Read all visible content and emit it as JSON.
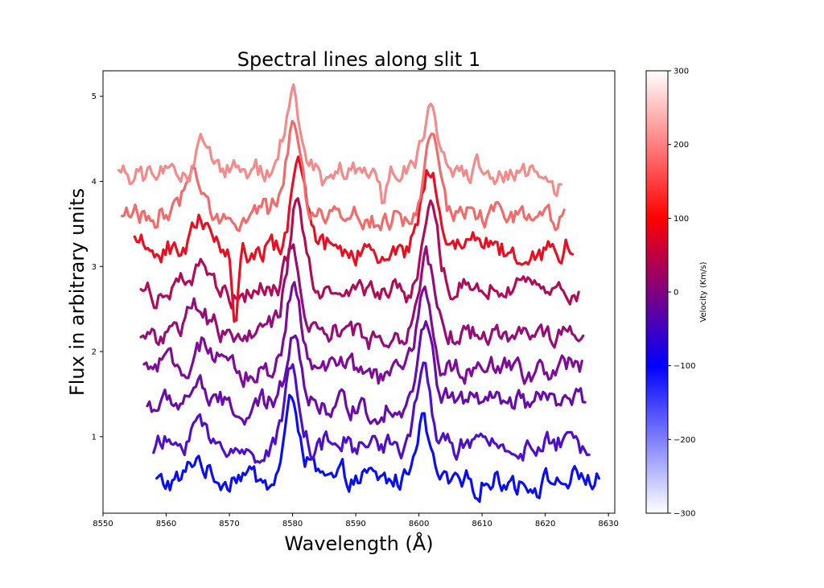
{
  "chart_data": {
    "type": "line",
    "title": "Spectral lines along slit 1",
    "xlabel": "Wavelength (Å)",
    "ylabel": "Flux in arbitrary units",
    "xlim": [
      8550,
      8631
    ],
    "ylim": [
      0.1,
      5.3
    ],
    "xticks": [
      8550,
      8560,
      8570,
      8580,
      8590,
      8600,
      8610,
      8620,
      8630
    ],
    "xtick_labels": [
      "8550",
      "8560",
      "8570",
      "8580",
      "8590",
      "8600",
      "8610",
      "8620",
      "8630"
    ],
    "yticks": [
      1,
      2,
      3,
      4,
      5
    ],
    "ytick_labels": [
      "1",
      "2",
      "3",
      "4",
      "5"
    ],
    "grid": false,
    "colorbar": {
      "label": "Velocity (Km/s)",
      "range": [
        -300,
        300
      ],
      "ticks": [
        -300,
        -200,
        -100,
        0,
        100,
        200,
        300
      ],
      "tick_labels": [
        "−300",
        "−200",
        "−100",
        "0",
        "100",
        "200",
        "300"
      ],
      "colors": [
        "#ffffff",
        "#0000ff",
        "#ff0000",
        "#ffffff"
      ]
    },
    "series": [
      {
        "color": "#0a0ff2",
        "offset": 0.48,
        "x_start": 8558.5,
        "x_end": 8628.5,
        "lines": [
          [
            8564.9,
            0.28
          ],
          [
            8580.0,
            0.95
          ],
          [
            8600.5,
            0.75
          ],
          [
            8571.8,
            0.1
          ],
          [
            8583.2,
            0.1
          ]
        ]
      },
      {
        "color": "#5010c8",
        "offset": 0.88,
        "x_start": 8558.0,
        "x_end": 8627.0,
        "lines": [
          [
            8564.9,
            0.32
          ],
          [
            8580.0,
            0.98
          ],
          [
            8600.8,
            0.85
          ],
          [
            8572.5,
            -0.1
          ],
          [
            8595.0,
            0.05
          ]
        ]
      },
      {
        "color": "#6a0ca8",
        "offset": 1.37,
        "x_start": 8557.0,
        "x_end": 8626.5,
        "lines": [
          [
            8565.0,
            0.28
          ],
          [
            8580.2,
            0.95
          ],
          [
            8601.0,
            0.9
          ],
          [
            8572.4,
            -0.18
          ],
          [
            8593.3,
            -0.1
          ],
          [
            8605.2,
            0.1
          ]
        ]
      },
      {
        "color": "#7e0c98",
        "offset": 1.8,
        "x_start": 8556.5,
        "x_end": 8626.0,
        "lines": [
          [
            8565.5,
            0.25
          ],
          [
            8580.0,
            0.95
          ],
          [
            8601.0,
            0.85
          ],
          [
            8572.4,
            -0.1
          ],
          [
            8593.5,
            -0.1
          ]
        ]
      },
      {
        "color": "#950d78",
        "offset": 2.22,
        "x_start": 8556.0,
        "x_end": 8626.0,
        "lines": [
          [
            8565.0,
            0.32
          ],
          [
            8580.0,
            1.0
          ],
          [
            8601.3,
            0.9
          ],
          [
            8572.4,
            -0.1
          ],
          [
            8593.4,
            -0.08
          ]
        ]
      },
      {
        "color": "#b00d58",
        "offset": 2.72,
        "x_start": 8556.0,
        "x_end": 8625.5,
        "lines": [
          [
            8566.0,
            0.3
          ],
          [
            8580.8,
            1.05
          ],
          [
            8601.8,
            0.9
          ],
          [
            8571.5,
            -0.15
          ],
          [
            8593.7,
            -0.08
          ]
        ]
      },
      {
        "color": "#e81020",
        "offset": 3.22,
        "x_start": 8555.0,
        "x_end": 8624.5,
        "lines": [
          [
            8565.5,
            0.35
          ],
          [
            8581.0,
            1.0
          ],
          [
            8601.7,
            0.95
          ],
          [
            8570.9,
            -0.75
          ],
          [
            8594.0,
            -0.15
          ],
          [
            8618.0,
            -0.1
          ]
        ]
      },
      {
        "color": "#f26a6a",
        "offset": 3.62,
        "x_start": 8553.0,
        "x_end": 8623.0,
        "lines": [
          [
            8564.0,
            0.45
          ],
          [
            8580.2,
            0.95
          ],
          [
            8602.1,
            0.95
          ],
          [
            8594.5,
            -0.15
          ]
        ]
      },
      {
        "color": "#f58a8a",
        "offset": 4.1,
        "x_start": 8552.5,
        "x_end": 8622.5,
        "lines": [
          [
            8565.5,
            0.3
          ],
          [
            8579.9,
            0.95
          ],
          [
            8601.9,
            0.7
          ],
          [
            8594.5,
            -0.4
          ],
          [
            8621.5,
            -0.2
          ]
        ]
      }
    ]
  }
}
